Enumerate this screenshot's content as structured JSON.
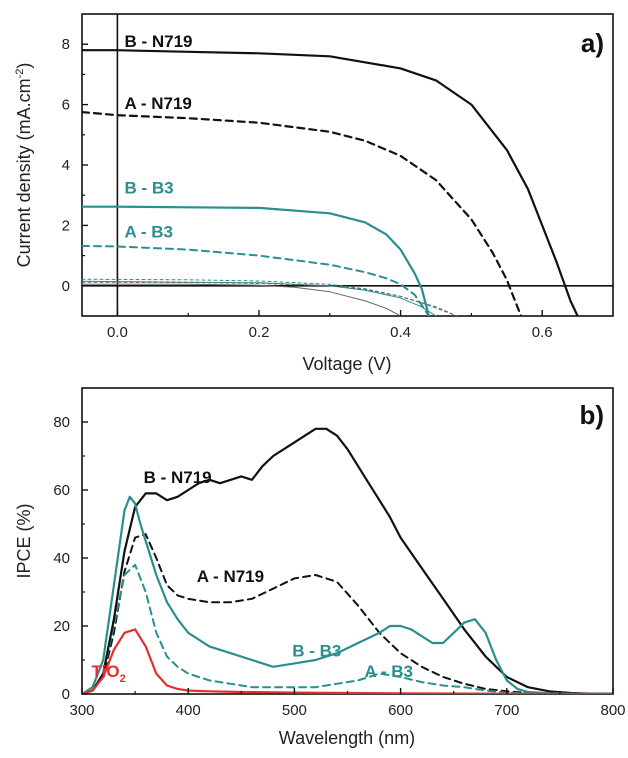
{
  "chart_data": [
    {
      "type": "line",
      "panel_label": "a)",
      "xlabel": "Voltage (V)",
      "ylabel": "Current density (mA.cm-2)",
      "ylabel_main": "Current density (mA.cm",
      "ylabel_sup": "-2",
      "ylabel_close": ")",
      "xlim": [
        -0.05,
        0.7
      ],
      "ylim": [
        -1,
        9
      ],
      "xticks": [
        0.0,
        0.2,
        0.4,
        0.6
      ],
      "xtick_labels": [
        "0.0",
        "0.2",
        "0.4",
        "0.6"
      ],
      "yticks": [
        0,
        2,
        4,
        6,
        8
      ],
      "ytick_labels": [
        "0",
        "2",
        "4",
        "6",
        "8"
      ],
      "zero_lines": true,
      "annotations": [
        {
          "text": "B - N719",
          "color": "#111111",
          "at": [
            0.01,
            7.9
          ]
        },
        {
          "text": "A - N719",
          "color": "#111111",
          "at": [
            0.01,
            5.85
          ]
        },
        {
          "text": "B - B3",
          "color": "#2a8f8f",
          "at": [
            0.01,
            3.05
          ]
        },
        {
          "text": "A - B3",
          "color": "#2a8f8f",
          "at": [
            0.01,
            1.6
          ]
        }
      ],
      "series": [
        {
          "name": "B - N719",
          "color": "#111111",
          "dash": "",
          "width": 2.2,
          "x": [
            -0.05,
            0.0,
            0.1,
            0.2,
            0.3,
            0.4,
            0.45,
            0.5,
            0.55,
            0.58,
            0.6,
            0.62,
            0.64,
            0.65
          ],
          "y": [
            7.8,
            7.8,
            7.75,
            7.7,
            7.6,
            7.2,
            6.8,
            6.0,
            4.5,
            3.2,
            2.0,
            0.8,
            -0.5,
            -1.0
          ]
        },
        {
          "name": "A - N719",
          "color": "#111111",
          "dash": "7,5",
          "width": 2.2,
          "x": [
            -0.05,
            0.0,
            0.1,
            0.2,
            0.3,
            0.35,
            0.4,
            0.45,
            0.5,
            0.53,
            0.55,
            0.57
          ],
          "y": [
            5.75,
            5.65,
            5.55,
            5.4,
            5.1,
            4.8,
            4.3,
            3.5,
            2.2,
            1.1,
            0.2,
            -1.0
          ]
        },
        {
          "name": "B - B3",
          "color": "#2a8f8f",
          "dash": "",
          "width": 2.2,
          "x": [
            -0.05,
            0.0,
            0.1,
            0.2,
            0.3,
            0.35,
            0.38,
            0.4,
            0.42,
            0.43,
            0.44
          ],
          "y": [
            2.62,
            2.62,
            2.6,
            2.58,
            2.4,
            2.1,
            1.7,
            1.2,
            0.4,
            -0.1,
            -1.0
          ]
        },
        {
          "name": "A - B3",
          "color": "#2a8f8f",
          "dash": "7,5",
          "width": 2.0,
          "x": [
            -0.05,
            0.0,
            0.1,
            0.2,
            0.3,
            0.35,
            0.38,
            0.4,
            0.42,
            0.44
          ],
          "y": [
            1.32,
            1.3,
            1.2,
            1.0,
            0.7,
            0.45,
            0.25,
            0.05,
            -0.3,
            -1.0
          ]
        },
        {
          "name": "dark B3 solid",
          "color": "#2a8f8f",
          "dash": "",
          "width": 1.0,
          "x": [
            -0.05,
            0.1,
            0.2,
            0.3,
            0.35,
            0.4,
            0.43,
            0.45
          ],
          "y": [
            0.15,
            0.12,
            0.1,
            0.0,
            -0.15,
            -0.4,
            -0.7,
            -1.0
          ]
        },
        {
          "name": "dark B3 dashed",
          "color": "#2a8f8f",
          "dash": "3,3",
          "width": 1.0,
          "x": [
            -0.05,
            0.1,
            0.2,
            0.3,
            0.35,
            0.4,
            0.44,
            0.48
          ],
          "y": [
            0.22,
            0.2,
            0.16,
            0.05,
            -0.1,
            -0.35,
            -0.65,
            -1.0
          ]
        },
        {
          "name": "dark N719 solid",
          "color": "#666666",
          "dash": "",
          "width": 1.0,
          "x": [
            -0.05,
            0.1,
            0.2,
            0.25,
            0.3,
            0.35,
            0.38,
            0.4
          ],
          "y": [
            0.05,
            0.05,
            0.02,
            -0.05,
            -0.2,
            -0.5,
            -0.75,
            -1.0
          ]
        },
        {
          "name": "dark N719 dashed",
          "color": "#666666",
          "dash": "3,3",
          "width": 1.0,
          "x": [
            -0.05,
            0.1,
            0.2,
            0.3,
            0.35,
            0.4,
            0.45,
            0.48
          ],
          "y": [
            0.12,
            0.11,
            0.08,
            0.0,
            -0.12,
            -0.35,
            -0.7,
            -1.0
          ]
        }
      ]
    },
    {
      "type": "line",
      "panel_label": "b)",
      "xlabel": "Wavelength (nm)",
      "ylabel": "IPCE (%)",
      "xlim": [
        300,
        800
      ],
      "ylim": [
        0,
        90
      ],
      "xticks": [
        300,
        400,
        500,
        600,
        700,
        800
      ],
      "xtick_labels": [
        "300",
        "400",
        "500",
        "600",
        "700",
        "800"
      ],
      "yticks": [
        0,
        20,
        40,
        60,
        80
      ],
      "ytick_labels": [
        "0",
        "20",
        "40",
        "60",
        "80"
      ],
      "annotations": [
        {
          "text": "B - N719",
          "color": "#111111",
          "at": [
            358,
            62
          ]
        },
        {
          "text": "A - N719",
          "color": "#111111",
          "at": [
            408,
            33
          ]
        },
        {
          "text": "B - B3",
          "color": "#2a8f8f",
          "at": [
            498,
            11
          ]
        },
        {
          "text": "A - B3",
          "color": "#2a8f8f",
          "at": [
            566,
            5
          ]
        },
        {
          "text": "TiO",
          "sub": "2",
          "color": "#e03030",
          "at": [
            309,
            5
          ]
        }
      ],
      "series": [
        {
          "name": "B - N719",
          "color": "#111111",
          "dash": "",
          "width": 2.2,
          "x": [
            300,
            310,
            320,
            330,
            340,
            350,
            360,
            370,
            380,
            390,
            400,
            410,
            420,
            430,
            440,
            450,
            460,
            470,
            480,
            490,
            500,
            510,
            520,
            530,
            540,
            550,
            560,
            570,
            580,
            590,
            600,
            620,
            640,
            660,
            680,
            700,
            720,
            740,
            760,
            780,
            800
          ],
          "y": [
            0,
            1,
            6,
            22,
            42,
            55,
            59,
            59,
            57,
            58,
            60,
            62,
            63,
            62,
            63,
            64,
            63,
            67,
            70,
            72,
            74,
            76,
            78,
            78,
            76,
            72,
            67,
            62,
            57,
            52,
            46,
            37,
            28,
            19,
            11,
            5,
            2,
            0.8,
            0.3,
            0.1,
            0.1
          ]
        },
        {
          "name": "A - N719",
          "color": "#111111",
          "dash": "7,5",
          "width": 2.0,
          "x": [
            300,
            310,
            320,
            330,
            340,
            350,
            360,
            370,
            380,
            390,
            400,
            420,
            440,
            460,
            480,
            500,
            520,
            540,
            560,
            580,
            600,
            620,
            640,
            660,
            680,
            700,
            720,
            740,
            760,
            780,
            800
          ],
          "y": [
            0,
            1,
            5,
            18,
            36,
            46,
            47,
            40,
            32,
            29,
            28,
            27,
            27,
            28,
            31,
            34,
            35,
            33,
            26,
            18,
            12,
            8,
            5,
            3,
            1.5,
            0.8,
            0.3,
            0.1,
            0.1,
            0,
            0
          ]
        },
        {
          "name": "B - B3",
          "color": "#2a8f8f",
          "dash": "",
          "width": 2.2,
          "x": [
            300,
            310,
            320,
            330,
            340,
            345,
            350,
            355,
            360,
            370,
            380,
            390,
            400,
            420,
            440,
            460,
            480,
            500,
            520,
            540,
            560,
            580,
            590,
            600,
            610,
            620,
            630,
            640,
            650,
            660,
            670,
            680,
            690,
            700,
            710,
            720,
            740,
            760,
            780,
            800
          ],
          "y": [
            0,
            2,
            10,
            32,
            54,
            58,
            56,
            50,
            45,
            35,
            27,
            22,
            18,
            14,
            12,
            10,
            8,
            9,
            10,
            12,
            15,
            18,
            20,
            20,
            19,
            17,
            15,
            15,
            18,
            21,
            22,
            18,
            10,
            4,
            1.5,
            0.6,
            0.2,
            0.1,
            0,
            0
          ]
        },
        {
          "name": "A - B3",
          "color": "#2a8f8f",
          "dash": "7,5",
          "width": 2.0,
          "x": [
            300,
            310,
            320,
            330,
            340,
            350,
            360,
            370,
            380,
            390,
            400,
            420,
            440,
            460,
            480,
            500,
            520,
            540,
            560,
            580,
            600,
            620,
            640,
            660,
            680,
            700,
            720,
            740,
            760,
            800
          ],
          "y": [
            0,
            1,
            6,
            20,
            35,
            38,
            30,
            18,
            11,
            8,
            6,
            4,
            3,
            2,
            2,
            2,
            2,
            3,
            4,
            6,
            5,
            3.5,
            2.5,
            2,
            1,
            0.4,
            0.2,
            0.1,
            0,
            0
          ]
        },
        {
          "name": "TiO2",
          "color": "#e03030",
          "dash": "",
          "width": 2.2,
          "x": [
            300,
            310,
            320,
            330,
            340,
            350,
            360,
            370,
            380,
            390,
            400,
            420,
            450,
            500,
            600,
            700,
            800
          ],
          "y": [
            0,
            1,
            5,
            13,
            18,
            19,
            14,
            6,
            2.5,
            1.5,
            1,
            0.8,
            0.6,
            0.4,
            0.2,
            0.1,
            0
          ]
        }
      ]
    }
  ]
}
